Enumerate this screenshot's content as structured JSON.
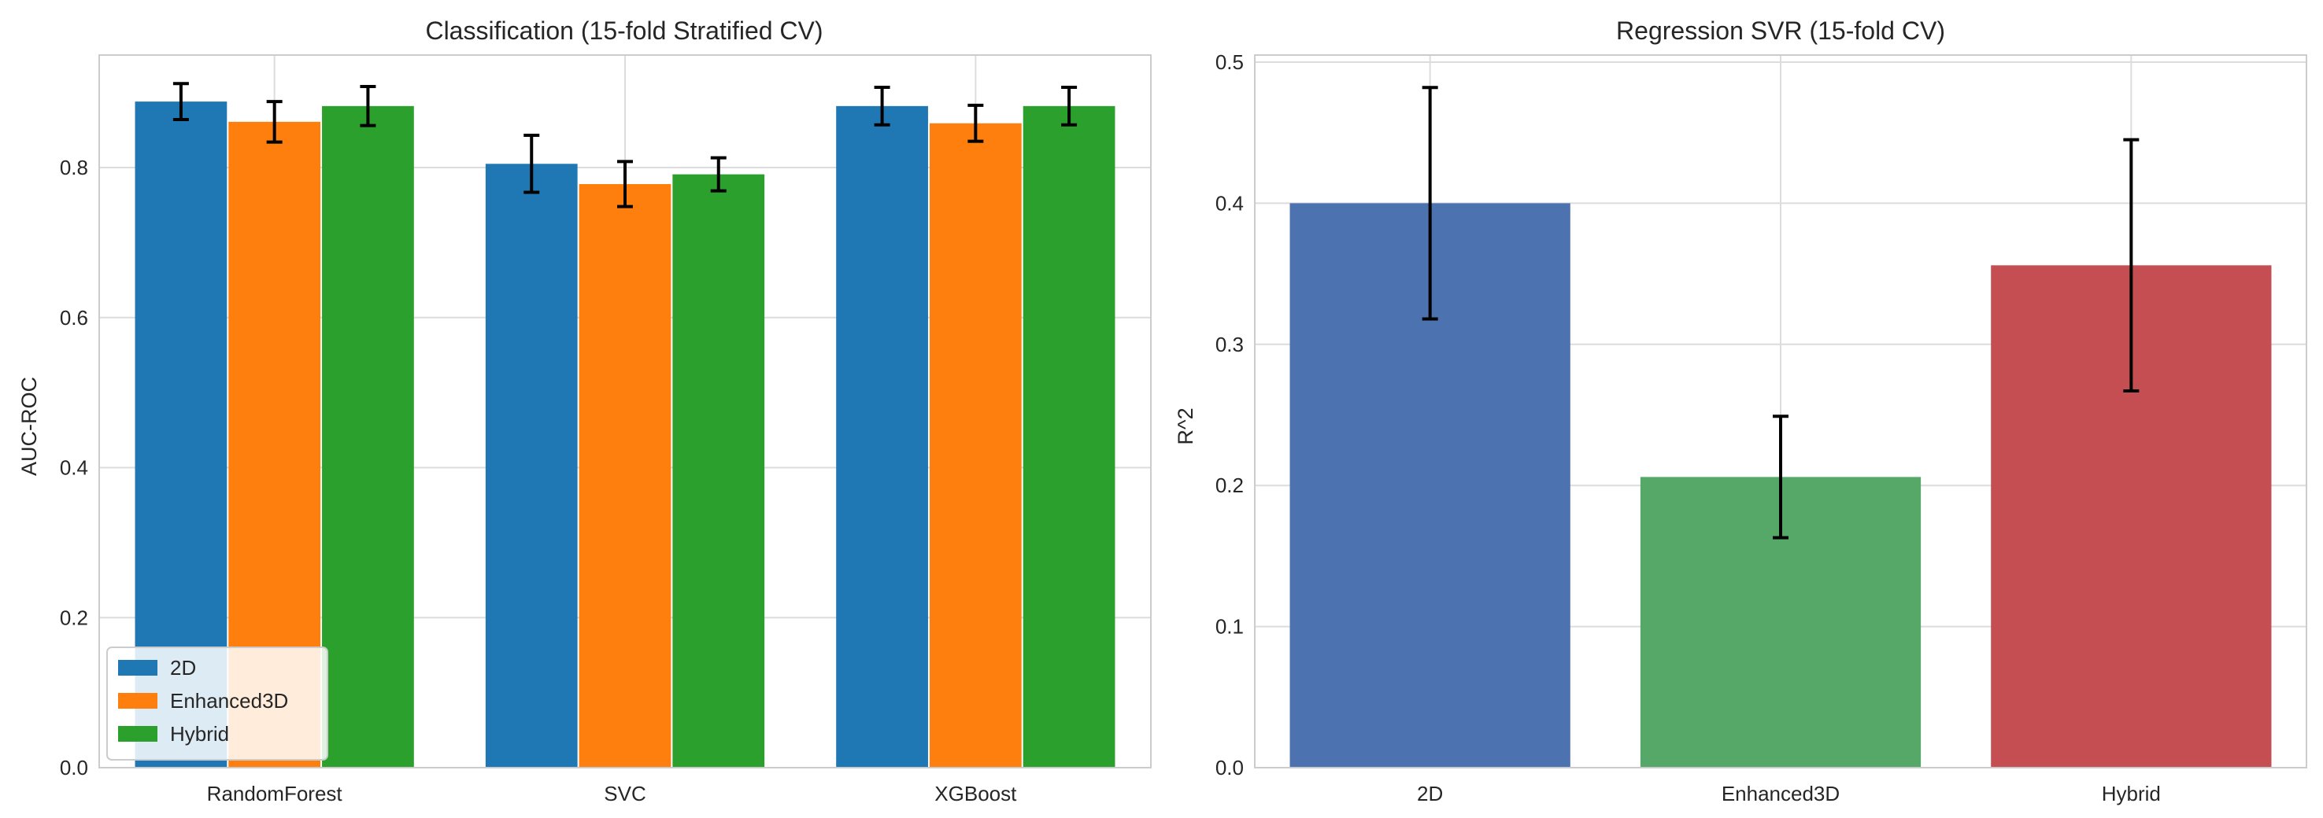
{
  "chart_data": [
    {
      "type": "bar",
      "title": "Classification (15-fold Stratified CV)",
      "xlabel": "",
      "ylabel": "AUC-ROC",
      "categories": [
        "RandomForest",
        "SVC",
        "XGBoost"
      ],
      "series": [
        {
          "name": "2D",
          "color": "#1f77b4",
          "values": [
            0.888,
            0.805,
            0.882
          ],
          "errors": [
            0.024,
            0.038,
            0.025
          ]
        },
        {
          "name": "Enhanced3D",
          "color": "#ff7f0e",
          "values": [
            0.861,
            0.778,
            0.859
          ],
          "errors": [
            0.027,
            0.03,
            0.024
          ]
        },
        {
          "name": "Hybrid",
          "color": "#2ca02c",
          "values": [
            0.882,
            0.791,
            0.882
          ],
          "errors": [
            0.026,
            0.022,
            0.025
          ]
        }
      ],
      "ylim": [
        0,
        0.95
      ],
      "yticks": [
        "0.0",
        "0.2",
        "0.4",
        "0.6",
        "0.8"
      ],
      "grid": true,
      "legend": "lower-left"
    },
    {
      "type": "bar",
      "title": "Regression SVR (15-fold CV)",
      "xlabel": "",
      "ylabel": "R^2",
      "categories": [
        "2D",
        "Enhanced3D",
        "Hybrid"
      ],
      "colors": [
        "#4c72b0",
        "#55a868",
        "#c44e52"
      ],
      "values": [
        0.4,
        0.206,
        0.356
      ],
      "errors": [
        0.082,
        0.043,
        0.089
      ],
      "ylim": [
        0,
        0.505
      ],
      "yticks": [
        "0.0",
        "0.1",
        "0.2",
        "0.3",
        "0.4",
        "0.5"
      ],
      "grid": true
    }
  ]
}
